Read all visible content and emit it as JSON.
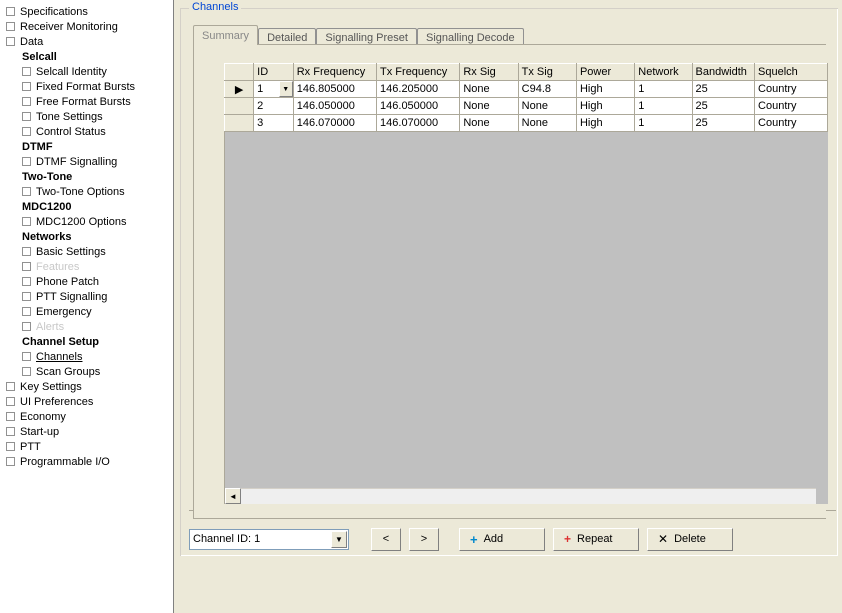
{
  "tree": [
    {
      "label": "Specifications",
      "indent": false,
      "bold": false
    },
    {
      "label": "Receiver Monitoring",
      "indent": false,
      "bold": false
    },
    {
      "label": "Data",
      "indent": false,
      "bold": false
    },
    {
      "label": "Selcall",
      "indent": true,
      "bold": true,
      "nobox": true
    },
    {
      "label": "Selcall Identity",
      "indent": true,
      "bold": false
    },
    {
      "label": "Fixed Format Bursts",
      "indent": true,
      "bold": false
    },
    {
      "label": "Free Format Bursts",
      "indent": true,
      "bold": false
    },
    {
      "label": "Tone Settings",
      "indent": true,
      "bold": false
    },
    {
      "label": "Control Status",
      "indent": true,
      "bold": false
    },
    {
      "label": "DTMF",
      "indent": true,
      "bold": true,
      "nobox": true
    },
    {
      "label": "DTMF Signalling",
      "indent": true,
      "bold": false
    },
    {
      "label": "Two-Tone",
      "indent": true,
      "bold": true,
      "nobox": true
    },
    {
      "label": "Two-Tone Options",
      "indent": true,
      "bold": false
    },
    {
      "label": "MDC1200",
      "indent": true,
      "bold": true,
      "nobox": true
    },
    {
      "label": "MDC1200 Options",
      "indent": true,
      "bold": false
    },
    {
      "label": "Networks",
      "indent": true,
      "bold": true,
      "nobox": true
    },
    {
      "label": "Basic Settings",
      "indent": true,
      "bold": false
    },
    {
      "label": "Features",
      "indent": true,
      "bold": false,
      "disabled": true
    },
    {
      "label": "Phone Patch",
      "indent": true,
      "bold": false
    },
    {
      "label": "PTT Signalling",
      "indent": true,
      "bold": false
    },
    {
      "label": "Emergency",
      "indent": true,
      "bold": false
    },
    {
      "label": "Alerts",
      "indent": true,
      "bold": false,
      "disabled": true
    },
    {
      "label": "Channel Setup",
      "indent": true,
      "bold": true,
      "nobox": true
    },
    {
      "label": "Channels",
      "indent": true,
      "bold": false,
      "underline": true
    },
    {
      "label": "Scan Groups",
      "indent": true,
      "bold": false
    },
    {
      "label": "Key Settings",
      "indent": false,
      "bold": false
    },
    {
      "label": "UI Preferences",
      "indent": false,
      "bold": false
    },
    {
      "label": "Economy",
      "indent": false,
      "bold": false
    },
    {
      "label": "Start-up",
      "indent": false,
      "bold": false
    },
    {
      "label": "PTT",
      "indent": false,
      "bold": false
    },
    {
      "label": "Programmable I/O",
      "indent": false,
      "bold": false
    }
  ],
  "panel_title": "Channels",
  "tabs": [
    "Summary",
    "Detailed",
    "Signalling Preset",
    "Signalling Decode"
  ],
  "active_tab": 0,
  "grid": {
    "columns": [
      "ID",
      "Rx Frequency",
      "Tx Frequency",
      "Rx Sig",
      "Tx Sig",
      "Power",
      "Network",
      "Bandwidth",
      "Squelch"
    ],
    "rows": [
      {
        "selected": true,
        "cells": [
          "1",
          "146.805000",
          "146.205000",
          "None",
          "C94.8",
          "High",
          "1",
          "25",
          "Country"
        ]
      },
      {
        "selected": false,
        "cells": [
          "2",
          "146.050000",
          "146.050000",
          "None",
          "None",
          "High",
          "1",
          "25",
          "Country"
        ]
      },
      {
        "selected": false,
        "cells": [
          "3",
          "146.070000",
          "146.070000",
          "None",
          "None",
          "High",
          "1",
          "25",
          "Country"
        ]
      }
    ]
  },
  "bottom": {
    "title": "Channels",
    "combo": "Channel ID: 1",
    "prev": "<",
    "next": ">",
    "add": "Add",
    "repeat": "Repeat",
    "delete": "Delete"
  }
}
